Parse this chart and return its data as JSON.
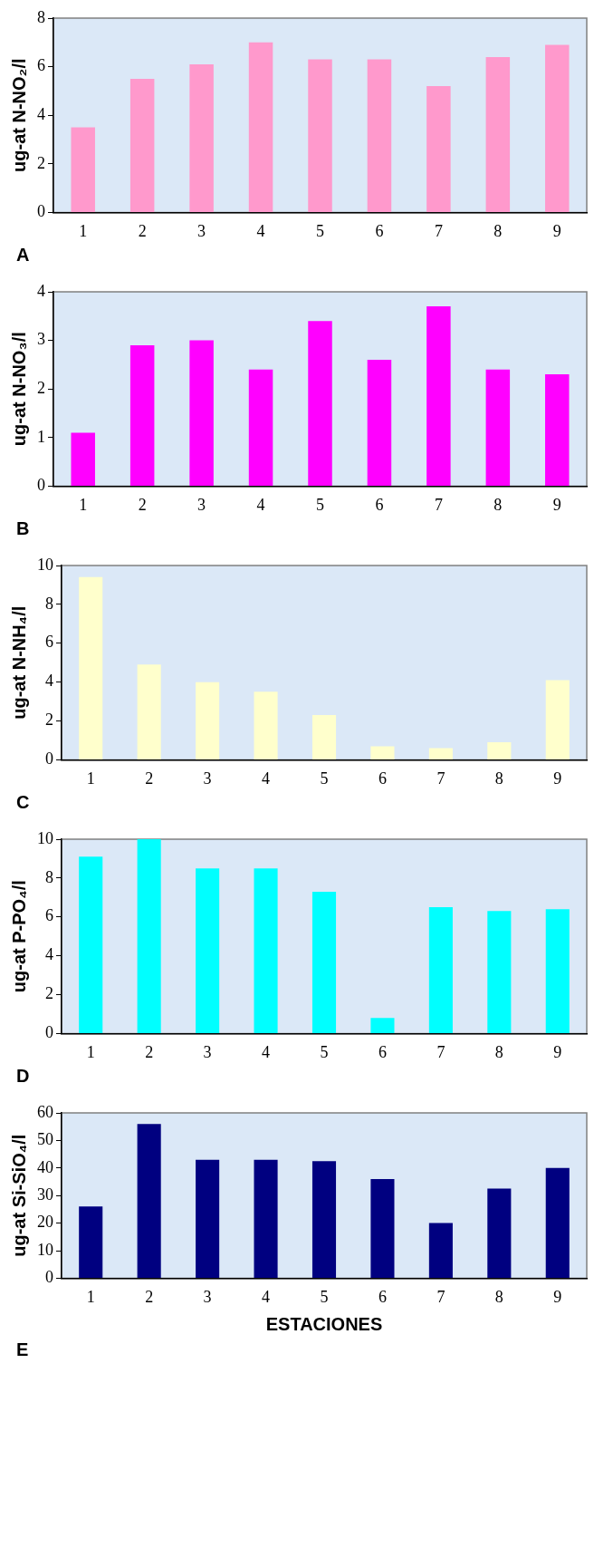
{
  "chart_data": [
    {
      "type": "bar",
      "ylabel": "ug-at N-NO₂/l",
      "annotations": [
        "A"
      ],
      "categories": [
        "1",
        "2",
        "3",
        "4",
        "5",
        "6",
        "7",
        "8",
        "9"
      ],
      "values": [
        3.5,
        5.5,
        6.1,
        7.0,
        6.3,
        6.3,
        5.2,
        6.4,
        6.9
      ],
      "color": "#ff99cc",
      "ylim": [
        0,
        8
      ],
      "yticks": [
        0,
        2,
        4,
        6,
        8
      ]
    },
    {
      "type": "bar",
      "ylabel": "ug-at N-NO₃/l",
      "annotations": [
        "B"
      ],
      "categories": [
        "1",
        "2",
        "3",
        "4",
        "5",
        "6",
        "7",
        "8",
        "9"
      ],
      "values": [
        1.1,
        2.9,
        3.0,
        2.4,
        3.4,
        2.6,
        3.7,
        2.4,
        2.3
      ],
      "color": "#ff00ff",
      "ylim": [
        0,
        4
      ],
      "yticks": [
        0,
        1,
        2,
        3,
        4
      ]
    },
    {
      "type": "bar",
      "ylabel": "ug-at N-NH₄/l",
      "annotations": [
        "C"
      ],
      "categories": [
        "1",
        "2",
        "3",
        "4",
        "5",
        "6",
        "7",
        "8",
        "9"
      ],
      "values": [
        9.4,
        4.9,
        4.0,
        3.5,
        2.3,
        0.7,
        0.6,
        0.9,
        4.1
      ],
      "color": "#ffffcc",
      "ylim": [
        0,
        10
      ],
      "yticks": [
        0,
        2,
        4,
        6,
        8,
        10
      ]
    },
    {
      "type": "bar",
      "ylabel": "ug-at P-PO₄/l",
      "annotations": [
        "D"
      ],
      "categories": [
        "1",
        "2",
        "3",
        "4",
        "5",
        "6",
        "7",
        "8",
        "9"
      ],
      "values": [
        9.1,
        10.0,
        8.5,
        8.5,
        7.3,
        0.8,
        6.5,
        6.3,
        6.4
      ],
      "color": "#00ffff",
      "ylim": [
        0,
        10
      ],
      "yticks": [
        0,
        2,
        4,
        6,
        8,
        10
      ]
    },
    {
      "type": "bar",
      "ylabel": "ug-at Si-SiO₄/l",
      "xlabel": "ESTACIONES",
      "annotations": [
        "E"
      ],
      "categories": [
        "1",
        "2",
        "3",
        "4",
        "5",
        "6",
        "7",
        "8",
        "9"
      ],
      "values": [
        26,
        56,
        43,
        43,
        42.5,
        36,
        20,
        32.5,
        40
      ],
      "color": "#000080",
      "ylim": [
        0,
        60
      ],
      "yticks": [
        0,
        10,
        20,
        30,
        40,
        50,
        60
      ]
    }
  ]
}
